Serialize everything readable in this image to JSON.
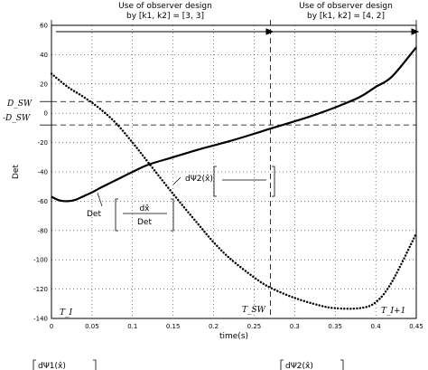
{
  "chart_data": {
    "type": "line",
    "xlabel": "time(s)",
    "ylabel": "Det",
    "xlim": [
      0,
      0.45
    ],
    "ylim": [
      -140,
      60
    ],
    "xticks": [
      0,
      0.05,
      0.1,
      0.15,
      0.2,
      0.25,
      0.3,
      0.35,
      0.4,
      0.45
    ],
    "xtick_labels": [
      "0",
      "0.05",
      "0.1",
      "0.15",
      "0.2",
      "0.25",
      "0.3",
      "0.35",
      "0.4",
      "0.45"
    ],
    "yticks": [
      -140,
      -120,
      -100,
      -80,
      -60,
      -40,
      -20,
      0,
      20,
      40,
      60
    ],
    "ytick_labels": [
      "-140",
      "-120",
      "-100",
      "-80",
      "-60",
      "-40",
      "-20",
      "0",
      "20",
      "40",
      "60"
    ],
    "grid": true,
    "series": [
      {
        "style": "solid",
        "x": [
          0,
          0.01,
          0.02,
          0.03,
          0.04,
          0.05,
          0.06,
          0.08,
          0.1,
          0.12,
          0.15,
          0.18,
          0.2,
          0.22,
          0.25,
          0.27,
          0.3,
          0.32,
          0.35,
          0.38,
          0.4,
          0.42,
          0.45
        ],
        "y": [
          -57,
          -59.5,
          -60,
          -59,
          -56.5,
          -54,
          -51,
          -45.5,
          -40,
          -35,
          -30,
          -25,
          -22,
          -19,
          -14,
          -10.5,
          -5.5,
          -2,
          4,
          11,
          18,
          25,
          45
        ]
      },
      {
        "style": "dotted",
        "x": [
          0,
          0.02,
          0.04,
          0.06,
          0.08,
          0.1,
          0.12,
          0.15,
          0.18,
          0.2,
          0.22,
          0.25,
          0.27,
          0.3,
          0.33,
          0.35,
          0.38,
          0.4,
          0.42,
          0.45
        ],
        "y": [
          27,
          18,
          11,
          3,
          -7,
          -20,
          -34,
          -55,
          -75,
          -88,
          -99,
          -112,
          -119,
          -126,
          -131,
          -133,
          -133,
          -129,
          -115,
          -82
        ]
      }
    ],
    "reference_lines": [
      {
        "orientation": "horizontal",
        "y": 8,
        "label": "D_SW"
      },
      {
        "orientation": "horizontal",
        "y": -8,
        "label": "-D_SW"
      },
      {
        "orientation": "vertical",
        "x": 0,
        "label": "T_I"
      },
      {
        "orientation": "vertical",
        "x": 0.27,
        "label": "T_SW"
      },
      {
        "orientation": "vertical",
        "x": 0.45,
        "label": "T_I+1"
      }
    ],
    "annotations": [
      {
        "id": "top_left_line1",
        "text": "Use of observer design"
      },
      {
        "id": "top_left_line2",
        "text": "by [k1, k2] = [3, 3]"
      },
      {
        "id": "top_right_line1",
        "text": "Use of observer design"
      },
      {
        "id": "top_right_line2",
        "text": "by [k1, k2] = [4, 2]"
      },
      {
        "id": "det1_prefix",
        "text": "Det"
      },
      {
        "id": "det1_num",
        "text": "dΨ1(x̂)"
      },
      {
        "id": "det1_den",
        "text": "dx̂"
      },
      {
        "id": "det2_prefix",
        "text": "Det"
      },
      {
        "id": "det2_num",
        "text": "dΨ2(x̂)"
      },
      {
        "id": "det2_den",
        "text": "dx"
      }
    ],
    "bottom_fragments": [
      "dΨ1(x̂)",
      "dΨ2(x̂)"
    ]
  }
}
